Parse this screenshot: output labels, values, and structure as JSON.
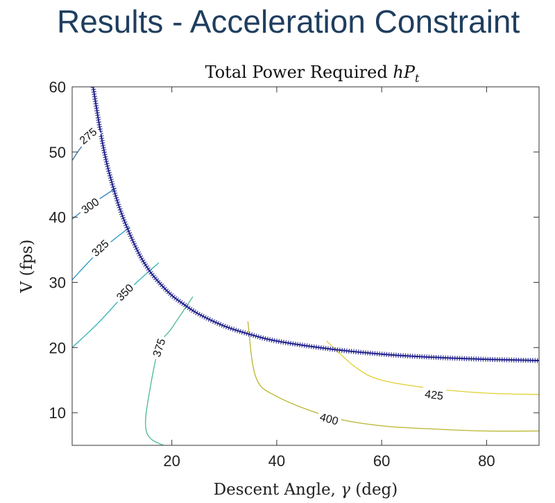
{
  "slide": {
    "title": "Results - Acceleration Constraint"
  },
  "chart_data": {
    "type": "contour",
    "title": "Total Power Required",
    "title_math_main": "hP",
    "title_math_sub": "t",
    "xlabel_text": "Descent Angle, ",
    "xlabel_symbol": "γ",
    "xlabel_unit": " (deg)",
    "xlabel": "Descent Angle, γ (deg)",
    "ylabel": "V (fps)",
    "xlim": [
      1,
      90
    ],
    "ylim": [
      5,
      60
    ],
    "xticks": [
      20,
      40,
      60,
      80
    ],
    "yticks": [
      10,
      20,
      30,
      40,
      50,
      60
    ],
    "grid": false,
    "boundary": {
      "name": "acceleration constraint",
      "color": "#1f1f8c",
      "points": [
        [
          5,
          60
        ],
        [
          6,
          55
        ],
        [
          7,
          50.5
        ],
        [
          8,
          47
        ],
        [
          10,
          41.5
        ],
        [
          12,
          37.4
        ],
        [
          14,
          34
        ],
        [
          16,
          31.5
        ],
        [
          18,
          29.6
        ],
        [
          20,
          28
        ],
        [
          22,
          26.8
        ],
        [
          25,
          25.2
        ],
        [
          30,
          23.3
        ],
        [
          35,
          22
        ],
        [
          40,
          21
        ],
        [
          50,
          19.8
        ],
        [
          60,
          19
        ],
        [
          70,
          18.5
        ],
        [
          80,
          18.2
        ],
        [
          90,
          18
        ]
      ]
    },
    "contours": [
      {
        "level": 275,
        "color": "#2f6ea8",
        "label": "275",
        "label_at": [
          4,
          52.5
        ],
        "points": [
          [
            1,
            48.7
          ],
          [
            3,
            51
          ],
          [
            6,
            53
          ]
        ]
      },
      {
        "level": 300,
        "color": "#2a7db8",
        "label": "300",
        "label_at": [
          4.4,
          41.8
        ],
        "points": [
          [
            1,
            39.7
          ],
          [
            4,
            41.6
          ],
          [
            9.4,
            44.5
          ]
        ]
      },
      {
        "level": 325,
        "color": "#2595c3",
        "label": "325",
        "label_at": [
          6.3,
          35.3
        ],
        "points": [
          [
            1,
            30.4
          ],
          [
            6,
            34.6
          ],
          [
            12,
            38.5
          ]
        ]
      },
      {
        "level": 350,
        "color": "#2eb0b4",
        "label": "350",
        "label_at": [
          11,
          28.5
        ],
        "points": [
          [
            1,
            20
          ],
          [
            6,
            23.8
          ],
          [
            12,
            29
          ],
          [
            17.5,
            33
          ]
        ]
      },
      {
        "level": 375,
        "color": "#4ab98f",
        "label": "375",
        "label_at": [
          17.5,
          20
        ],
        "points": [
          [
            24,
            27.8
          ],
          [
            20,
            23
          ],
          [
            17.5,
            20
          ],
          [
            15.5,
            12
          ],
          [
            15,
            8
          ],
          [
            16,
            6
          ],
          [
            19,
            4.8
          ]
        ]
      },
      {
        "level": 400,
        "color": "#b9b52c",
        "label": "400",
        "label_at": [
          50,
          9.1
        ],
        "points": [
          [
            34.5,
            24
          ],
          [
            36,
            15.5
          ],
          [
            40,
            12.5
          ],
          [
            50,
            9.4
          ],
          [
            60,
            8
          ],
          [
            70,
            7.5
          ],
          [
            80,
            7.2
          ],
          [
            90,
            7.2
          ]
        ]
      },
      {
        "level": 425,
        "color": "#e0d030",
        "label": "425",
        "label_at": [
          70,
          12.8
        ],
        "points": [
          [
            49.5,
            21
          ],
          [
            55,
            17
          ],
          [
            60,
            15
          ],
          [
            70,
            13.7
          ],
          [
            80,
            13
          ],
          [
            90,
            12.8
          ]
        ]
      }
    ]
  }
}
